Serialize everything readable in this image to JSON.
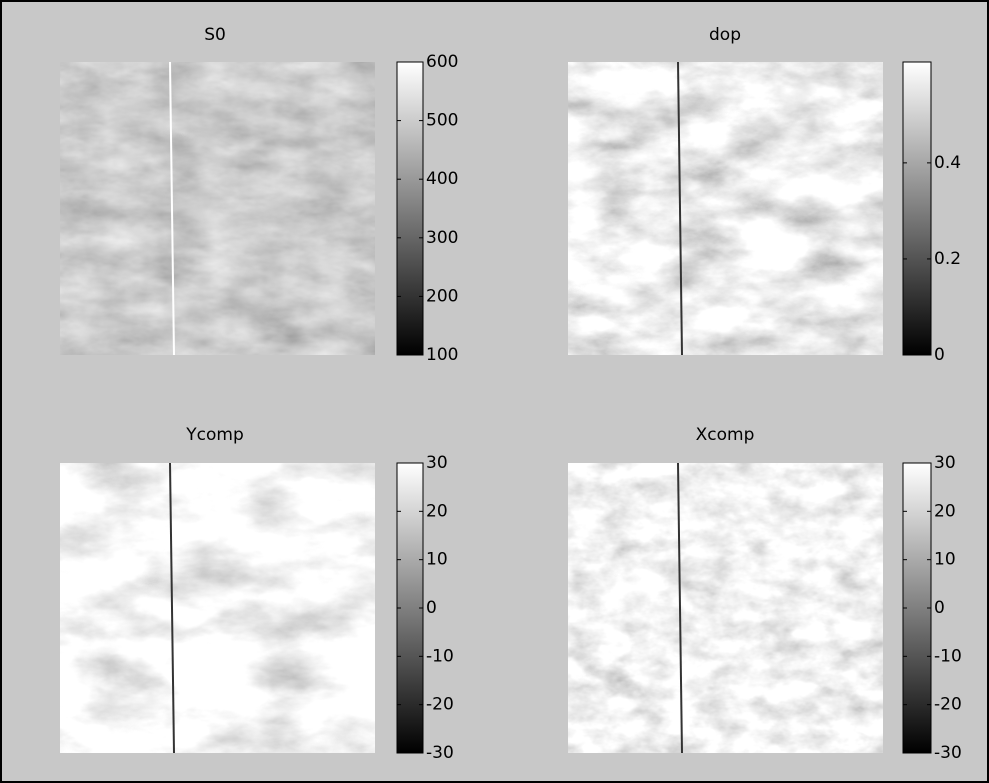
{
  "chart_data": [
    {
      "type": "image",
      "title": "S0",
      "clim": [
        100,
        600
      ],
      "cticks": [
        100,
        200,
        300,
        400,
        500,
        600
      ]
    },
    {
      "type": "image",
      "title": "dop",
      "clim": [
        0,
        0.61
      ],
      "cticks": [
        0,
        0.2,
        0.4
      ]
    },
    {
      "type": "image",
      "title": "Ycomp",
      "clim": [
        -30,
        30
      ],
      "cticks": [
        -30,
        -20,
        -10,
        0,
        10,
        20,
        30
      ]
    },
    {
      "type": "image",
      "title": "Xcomp",
      "clim": [
        -30,
        30
      ],
      "cticks": [
        -30,
        -20,
        -10,
        0,
        10,
        20,
        30
      ]
    }
  ]
}
